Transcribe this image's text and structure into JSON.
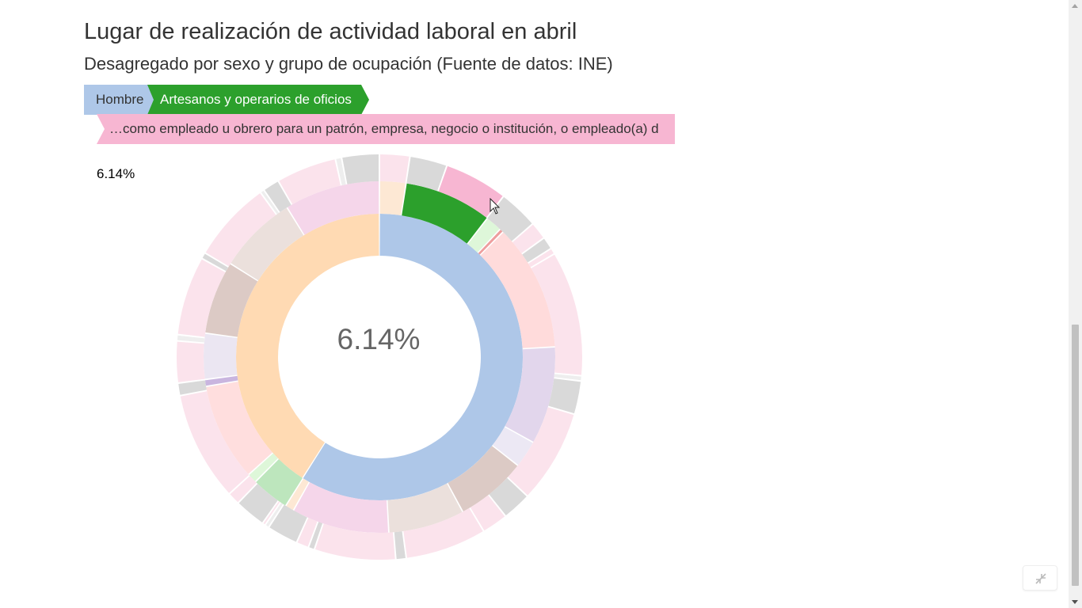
{
  "header": {
    "title": "Lugar de realización de actividad laboral en abril",
    "subtitle": "Desagregado por sexo y grupo de ocupación (Fuente de datos: INE)"
  },
  "breadcrumb": {
    "items": [
      {
        "label": "Hombre",
        "color": "#aec7e8"
      },
      {
        "label": "Artesanos y operarios de oficios",
        "color": "#2ca02c"
      },
      {
        "label": "…como empleado u obrero para un patrón, empresa, negocio o institución, o empleado(a) d",
        "color": "#f7b6d2"
      }
    ]
  },
  "percentage_label": "6.14%",
  "center_label": "6.14%",
  "controls": {
    "expand_icon": "compress-arrows-icon"
  },
  "chart_data": {
    "type": "sunburst",
    "selected_path": [
      "Hombre",
      "Artesanos y operarios de oficios",
      "…como empleado u obrero para un patrón, empresa, negocio o institución, o empleado(a) d"
    ],
    "selected_value_percent": 6.14,
    "levels": [
      {
        "ring": "sexo",
        "segments": [
          {
            "name": "Hombre",
            "share": 0.59,
            "color": "#aec7e8"
          },
          {
            "name": "",
            "share": 0.41,
            "color": "#ffdab3"
          }
        ]
      },
      {
        "ring": "grupo de ocupación",
        "segments": [
          {
            "name": "",
            "share": 0.027,
            "color": "#fde8d4"
          },
          {
            "name": "Artesanos y operarios de oficios",
            "share": 0.09,
            "color": "#2ca02c"
          },
          {
            "name": "",
            "share": 0.017,
            "color": "#def7d9"
          },
          {
            "name": "",
            "share": 0.004,
            "color": "#ee9e9e"
          },
          {
            "name": "",
            "share": 0.13,
            "color": "#ffdbdb"
          },
          {
            "name": "",
            "share": 0.1,
            "color": "#e2d6ec"
          },
          {
            "name": "",
            "share": 0.028,
            "color": "#ece8f4"
          },
          {
            "name": "",
            "share": 0.073,
            "color": "#dccac5"
          },
          {
            "name": "",
            "share": 0.078,
            "color": "#ebe0dc"
          },
          {
            "name": "",
            "share": 0.1,
            "color": "#f5d6ea"
          },
          {
            "name": "",
            "share": 0.009,
            "color": "#fde8d4"
          },
          {
            "name": "",
            "share": 0.039,
            "color": "#bde6bd"
          },
          {
            "name": "",
            "share": 0.01,
            "color": "#def7d9"
          },
          {
            "name": "",
            "share": 0.1,
            "color": "#ffdede"
          },
          {
            "name": "",
            "share": 0.007,
            "color": "#c9b5df"
          },
          {
            "name": "",
            "share": 0.047,
            "color": "#ebe6f2"
          },
          {
            "name": "",
            "share": 0.075,
            "color": "#dccac5"
          },
          {
            "name": "",
            "share": 0.081,
            "color": "#ebe0dc"
          },
          {
            "name": "",
            "share": 0.098,
            "color": "#f5d6ea"
          }
        ]
      },
      {
        "ring": "lugar de trabajo",
        "segments": [
          {
            "name": "",
            "share": 0.029,
            "color": "#fbe3ec"
          },
          {
            "name": "",
            "share": 0.036,
            "color": "#d9d9d9"
          },
          {
            "name": "…como empleado u obrero para un patrón, empresa, negocio o institución, o empleado(a) d",
            "share": 0.061,
            "color": "#f7b6d2"
          },
          {
            "name": "",
            "share": 0.038,
            "color": "#d9d9d9"
          },
          {
            "name": "",
            "share": 0.017,
            "color": "#fbe3ec"
          },
          {
            "name": "",
            "share": 0.012,
            "color": "#d9d9d9"
          },
          {
            "name": "",
            "share": 0.006,
            "color": "#fbe3ec"
          },
          {
            "name": "",
            "share": 0.12,
            "color": "#fbe3ec"
          },
          {
            "name": "",
            "share": 0.005,
            "color": "#eeeeee"
          },
          {
            "name": "",
            "share": 0.032,
            "color": "#d9d9d9"
          },
          {
            "name": "",
            "share": 0.09,
            "color": "#fbe3ec"
          },
          {
            "name": "",
            "share": 0.028,
            "color": "#d9d9d9"
          },
          {
            "name": "",
            "share": 0.025,
            "color": "#fbe3ec"
          },
          {
            "name": "",
            "share": 0.078,
            "color": "#fbe3ec"
          },
          {
            "name": "",
            "share": 0.01,
            "color": "#d9d9d9"
          },
          {
            "name": "",
            "share": 0.078,
            "color": "#fbe3ec"
          },
          {
            "name": "",
            "share": 0.006,
            "color": "#d9d9d9"
          },
          {
            "name": "",
            "share": 0.012,
            "color": "#fbe3ec"
          },
          {
            "name": "",
            "share": 0.03,
            "color": "#d9d9d9"
          },
          {
            "name": "",
            "share": 0.004,
            "color": "#eeeeee"
          },
          {
            "name": "",
            "share": 0.003,
            "color": "#fbe3ec"
          },
          {
            "name": "",
            "share": 0.03,
            "color": "#d9d9d9"
          },
          {
            "name": "",
            "share": 0.012,
            "color": "#fbe3ec"
          },
          {
            "name": "",
            "share": 0.105,
            "color": "#fbe3ec"
          },
          {
            "name": "",
            "share": 0.012,
            "color": "#d9d9d9"
          },
          {
            "name": "",
            "share": 0.04,
            "color": "#fbe3ec"
          },
          {
            "name": "",
            "share": 0.006,
            "color": "#eeeeee"
          },
          {
            "name": "",
            "share": 0.076,
            "color": "#fbe3ec"
          },
          {
            "name": "",
            "share": 0.006,
            "color": "#d9d9d9"
          },
          {
            "name": "",
            "share": 0.078,
            "color": "#fbe3ec"
          },
          {
            "name": "",
            "share": 0.004,
            "color": "#eeeeee"
          },
          {
            "name": "",
            "share": 0.016,
            "color": "#d9d9d9"
          },
          {
            "name": "",
            "share": 0.058,
            "color": "#fbe3ec"
          },
          {
            "name": "",
            "share": 0.006,
            "color": "#eeeeee"
          },
          {
            "name": "",
            "share": 0.036,
            "color": "#d9d9d9"
          }
        ]
      }
    ]
  }
}
